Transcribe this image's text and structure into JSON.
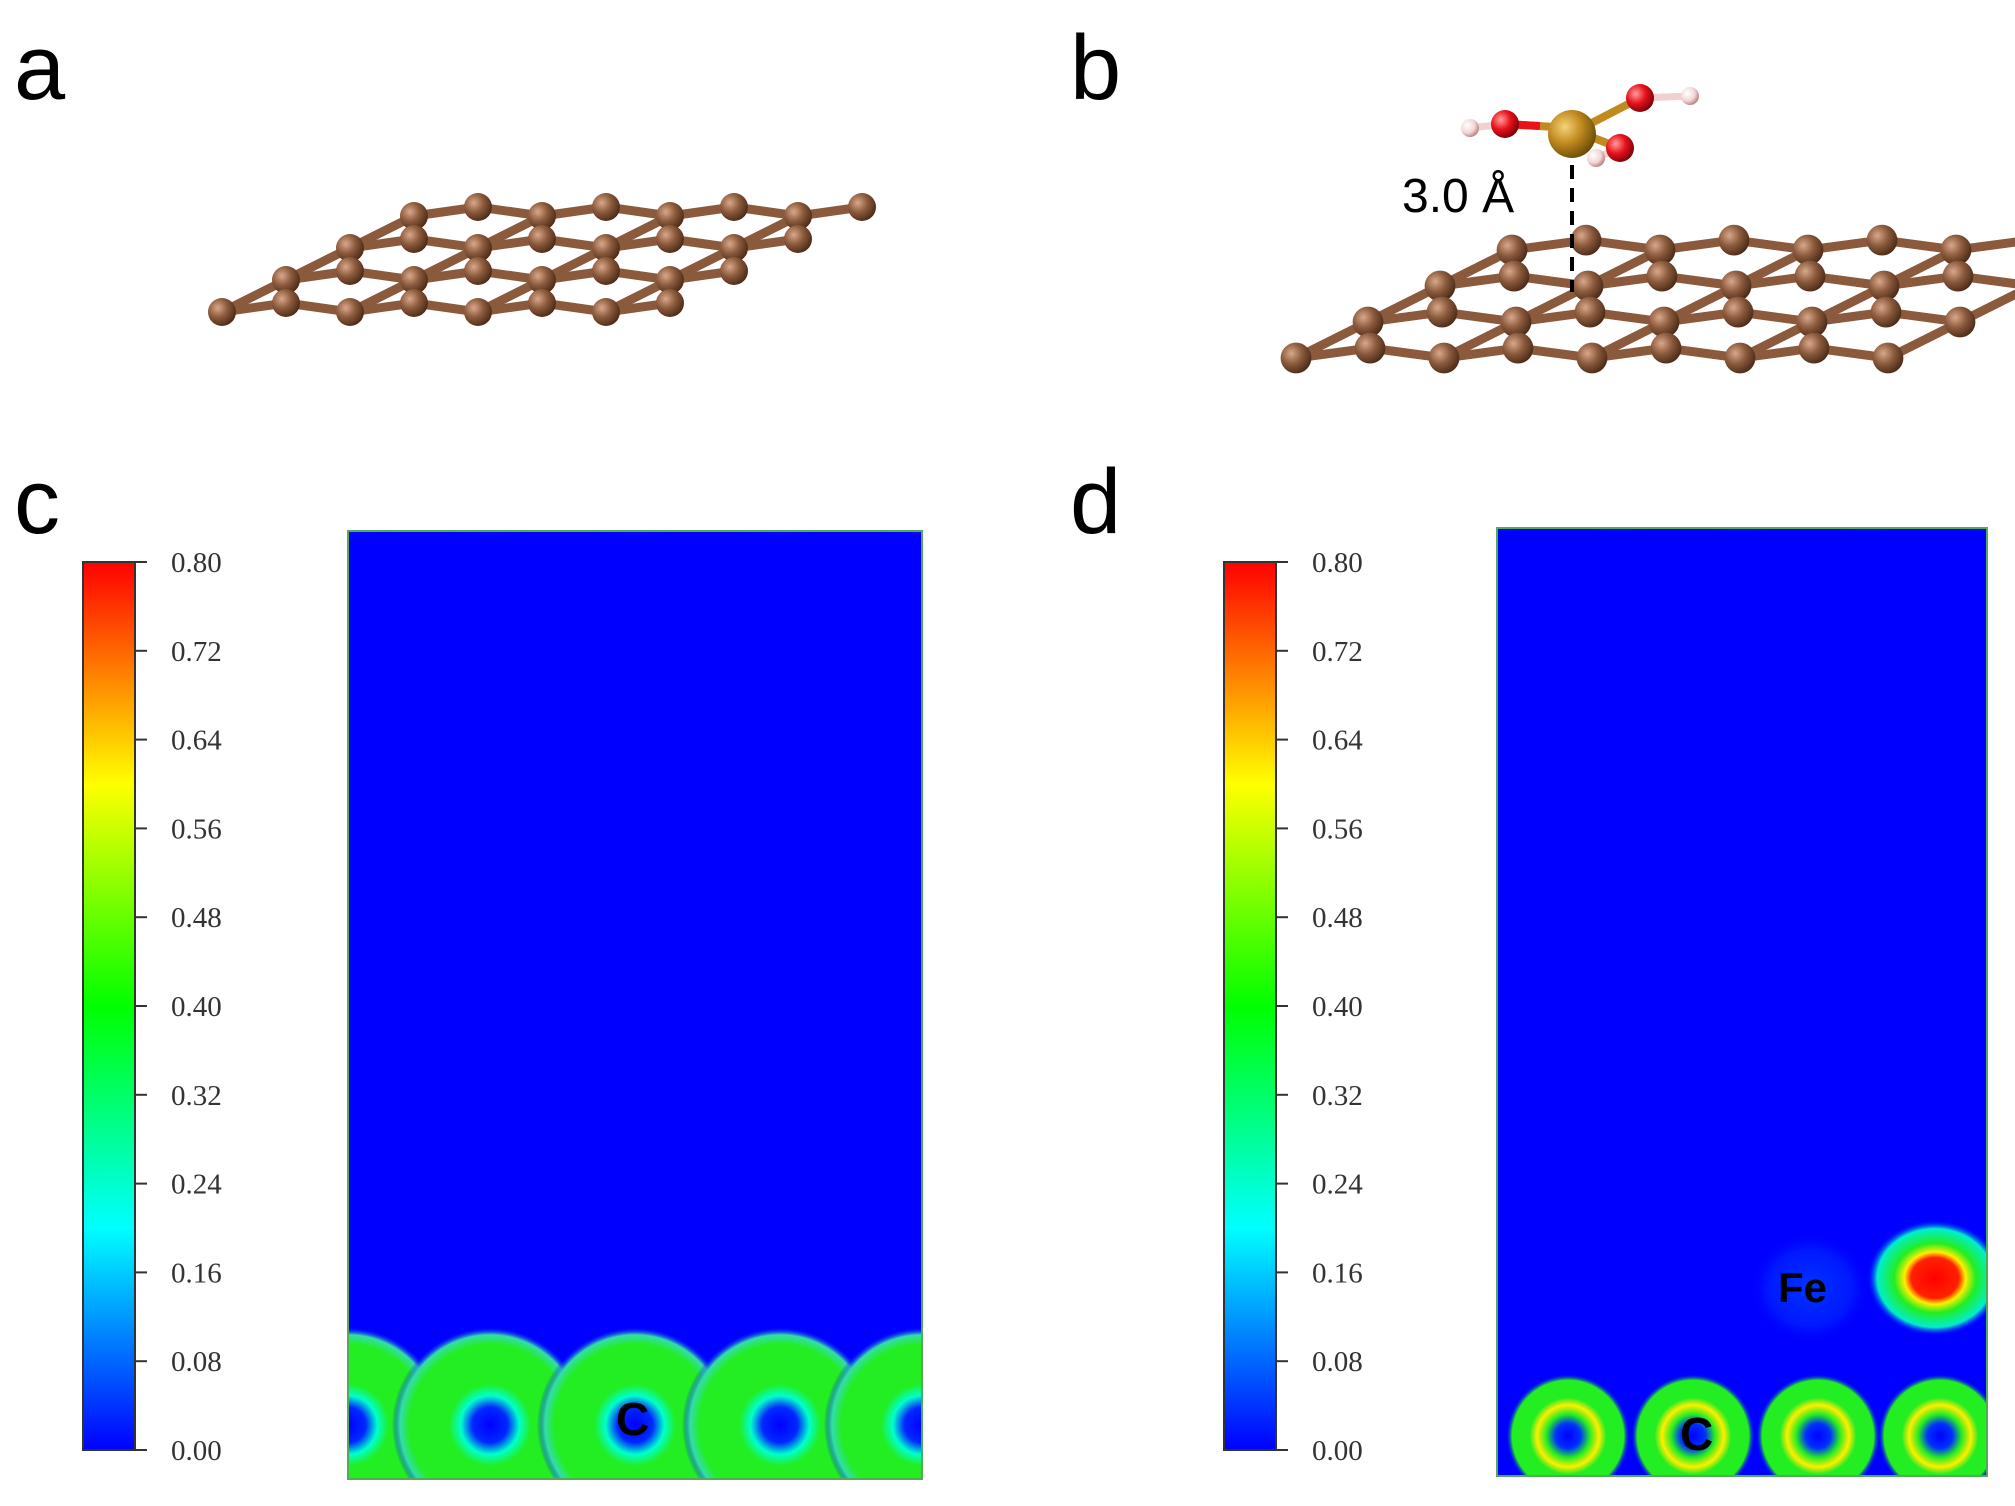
{
  "panels": {
    "a": {
      "label": "a"
    },
    "b": {
      "label": "b",
      "distance_label": "3.0 Å"
    },
    "c": {
      "label": "c",
      "atom_labels": [
        "C"
      ]
    },
    "d": {
      "label": "d",
      "atom_labels": [
        "Fe",
        "C"
      ]
    }
  },
  "colorbar": {
    "ticks": [
      "0.00",
      "0.08",
      "0.16",
      "0.24",
      "0.32",
      "0.40",
      "0.48",
      "0.56",
      "0.64",
      "0.72",
      "0.80"
    ],
    "min": 0.0,
    "max": 0.8,
    "colors": [
      "#0000ff",
      "#00ffff",
      "#00ff00",
      "#ffff00",
      "#ff0000"
    ]
  },
  "atom_colors": {
    "carbon": "#8b5a3c",
    "iron": "#c08a1e",
    "oxygen": "#e8121b",
    "hydrogen": "#f5d5d5"
  },
  "map_colors": {
    "background": "#0000ff",
    "carbon_ring": "#22ee22",
    "core": "#0028ff",
    "fe_peak": "#ff1100"
  }
}
